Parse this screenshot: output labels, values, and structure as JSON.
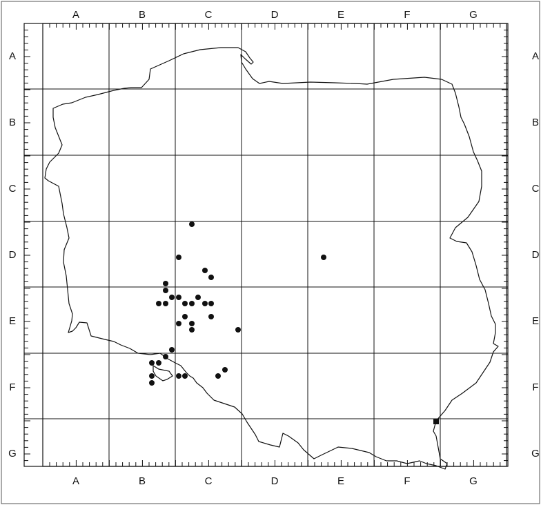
{
  "grid": {
    "columns": [
      "A",
      "B",
      "C",
      "D",
      "E",
      "F",
      "G"
    ],
    "rows": [
      "A",
      "B",
      "C",
      "D",
      "E",
      "F",
      "G"
    ]
  },
  "records": {
    "dots": [
      [
        "C",
        "D"
      ],
      [
        "C",
        "D"
      ],
      [
        "E",
        "D"
      ],
      [
        "C",
        "D"
      ],
      [
        "C",
        "D"
      ],
      [
        "B",
        "E"
      ],
      [
        "B",
        "E"
      ],
      [
        "B",
        "E"
      ],
      [
        "B",
        "E"
      ],
      [
        "B",
        "E"
      ],
      [
        "C",
        "E"
      ],
      [
        "C",
        "E"
      ],
      [
        "C",
        "E"
      ],
      [
        "C",
        "E"
      ],
      [
        "C",
        "E"
      ],
      [
        "C",
        "E"
      ],
      [
        "C",
        "E"
      ],
      [
        "C",
        "E"
      ],
      [
        "C",
        "E"
      ],
      [
        "C",
        "E"
      ],
      [
        "C",
        "E"
      ],
      [
        "C",
        "E"
      ],
      [
        "C",
        "F"
      ],
      [
        "B",
        "F"
      ],
      [
        "B",
        "F"
      ],
      [
        "B",
        "F"
      ],
      [
        "B",
        "F"
      ],
      [
        "B",
        "F"
      ],
      [
        "B",
        "F"
      ],
      [
        "C",
        "F"
      ],
      [
        "C",
        "F"
      ],
      [
        "C",
        "F"
      ]
    ],
    "squares": [
      [
        "F",
        "G"
      ]
    ]
  },
  "colors": {
    "lines": "#111111",
    "background": "#ffffff"
  }
}
